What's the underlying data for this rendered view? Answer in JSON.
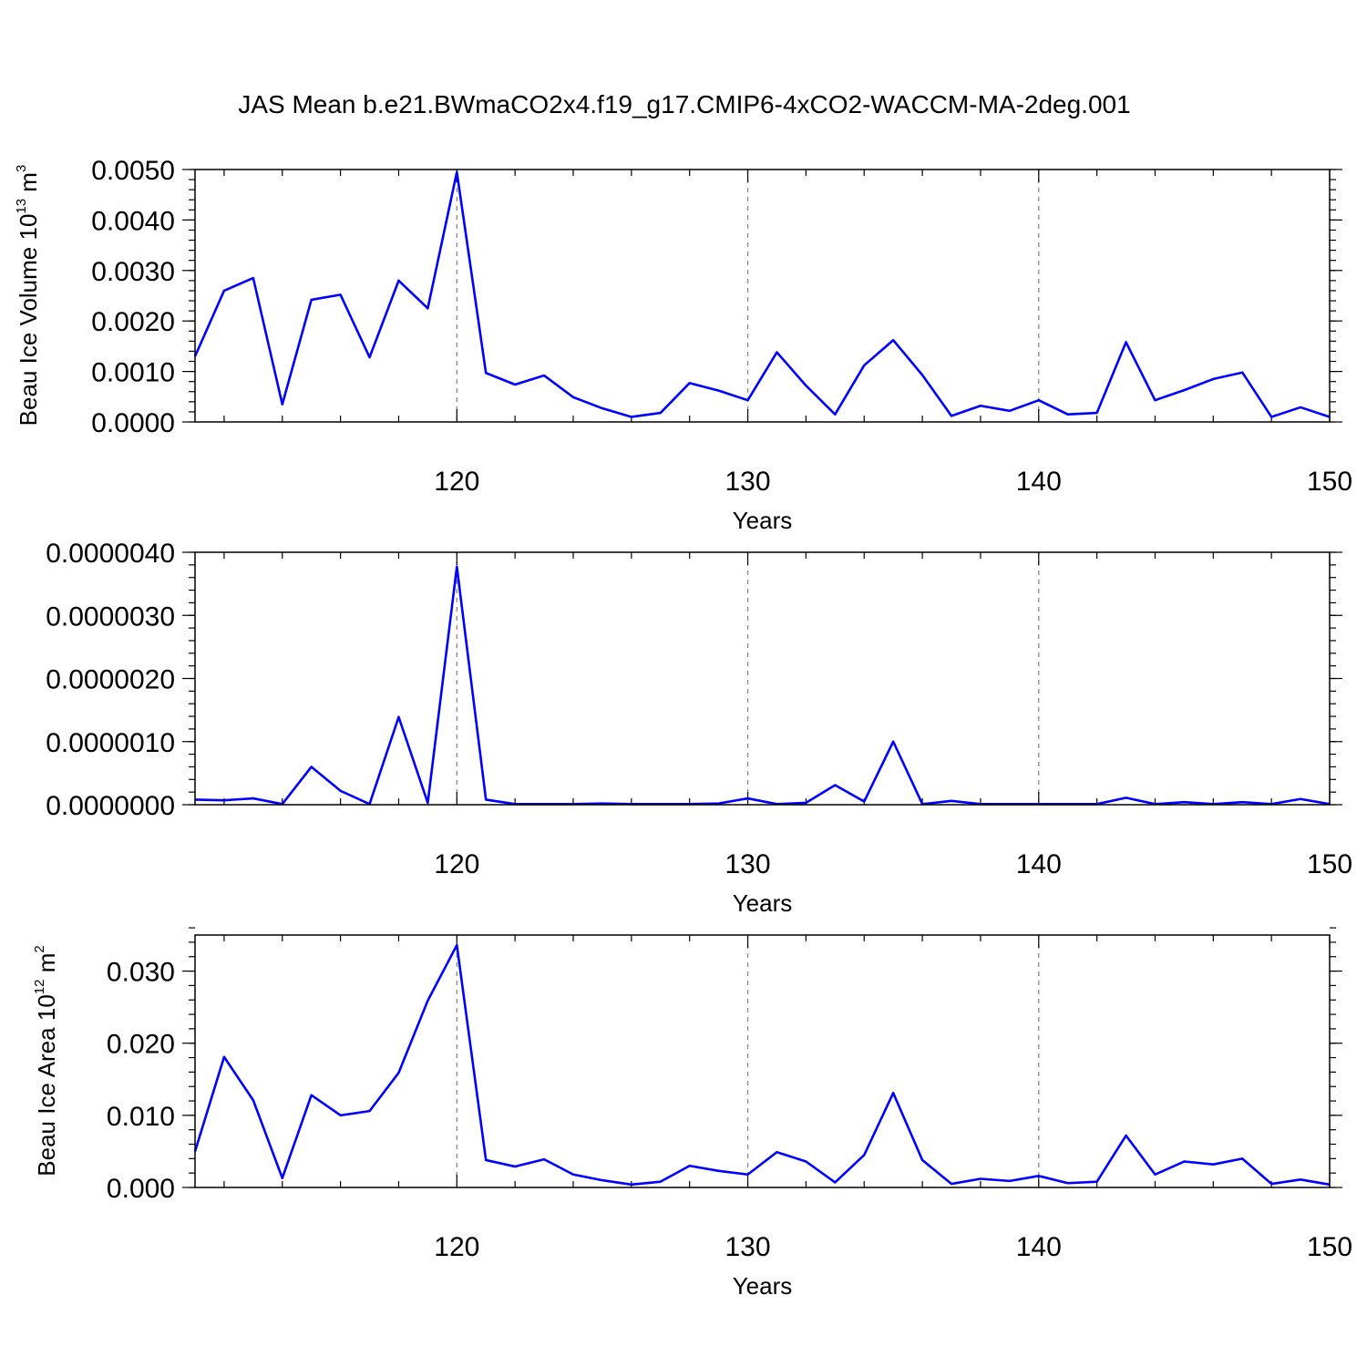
{
  "figure": {
    "title": "JAS Mean b.e21.BWmaCO2x4.f19_g17.CMIP6-4xCO2-WACCM-MA-2deg.001"
  },
  "chart_data": [
    {
      "type": "line",
      "title": "",
      "xlabel": "Years",
      "ylabel": {
        "main": "Beau Ice Volume 10",
        "sup1": "13",
        "unit": " m",
        "sup2": "3"
      },
      "xlim": [
        111,
        150
      ],
      "ylim": [
        0,
        0.005
      ],
      "xticks": [
        120,
        130,
        140,
        150
      ],
      "xtick_labels": [
        "120",
        "130",
        "140",
        "150"
      ],
      "yticks": [
        0,
        0.001,
        0.002,
        0.003,
        0.004,
        0.005
      ],
      "ytick_labels": [
        "0.0000",
        "0.0010",
        "0.0020",
        "0.0030",
        "0.0040",
        "0.0050"
      ],
      "grid_x": [
        120,
        130,
        140
      ],
      "color": "#0000ff",
      "series": [
        {
          "x": [
            111,
            112,
            113,
            114,
            115,
            116,
            117,
            118,
            119,
            120,
            121,
            122,
            123,
            124,
            125,
            126,
            127,
            128,
            129,
            130,
            131,
            132,
            133,
            134,
            135,
            136,
            137,
            138,
            139,
            140,
            141,
            142,
            143,
            144,
            145,
            146,
            147,
            148,
            149,
            150
          ],
          "values": [
            0.0013,
            0.0026,
            0.00285,
            0.00035,
            0.00242,
            0.00252,
            0.00128,
            0.0028,
            0.00225,
            0.00495,
            0.00097,
            0.00074,
            0.00092,
            0.00049,
            0.00027,
            0.0001,
            0.00018,
            0.00077,
            0.00062,
            0.00043,
            0.00138,
            0.00072,
            0.00015,
            0.00112,
            0.00162,
            0.00093,
            0.00012,
            0.00032,
            0.00022,
            0.00043,
            0.00015,
            0.00018,
            0.00158,
            0.00043,
            0.00063,
            0.00085,
            0.00098,
            0.0001,
            0.00029,
            0.0001
          ]
        }
      ]
    },
    {
      "type": "line",
      "title": "",
      "xlabel": "Years",
      "ylabel": "",
      "xlim": [
        111,
        150
      ],
      "ylim": [
        0,
        4e-06
      ],
      "xticks": [
        120,
        130,
        140,
        150
      ],
      "xtick_labels": [
        "120",
        "130",
        "140",
        "150"
      ],
      "yticks": [
        0,
        1e-06,
        2e-06,
        3e-06,
        4e-06
      ],
      "ytick_labels": [
        "0.0000000",
        "0.0000010",
        "0.0000020",
        "0.0000030",
        "0.0000040"
      ],
      "grid_x": [
        120,
        130,
        140
      ],
      "color": "#0000ff",
      "series": [
        {
          "x": [
            111,
            112,
            113,
            114,
            115,
            116,
            117,
            118,
            119,
            120,
            121,
            122,
            123,
            124,
            125,
            126,
            127,
            128,
            129,
            130,
            131,
            132,
            133,
            134,
            135,
            136,
            137,
            138,
            139,
            140,
            141,
            142,
            143,
            144,
            145,
            146,
            147,
            148,
            149,
            150
          ],
          "values": [
            8e-08,
            7e-08,
            1e-07,
            1e-08,
            6e-07,
            2.2e-07,
            1e-08,
            1.39e-06,
            3e-08,
            3.77e-06,
            8e-08,
            1e-08,
            1e-08,
            1e-08,
            2e-08,
            1e-08,
            1e-08,
            1e-08,
            2e-08,
            1e-07,
            1e-08,
            3e-08,
            3.1e-07,
            5e-08,
            1e-06,
            1e-08,
            6e-08,
            1e-08,
            1e-08,
            1e-08,
            1e-08,
            1e-08,
            1.1e-07,
            1e-08,
            4e-08,
            1e-08,
            4e-08,
            1e-08,
            9e-08,
            1e-08
          ]
        }
      ]
    },
    {
      "type": "line",
      "title": "",
      "xlabel": "Years",
      "ylabel": {
        "main": "Beau Ice Area 10",
        "sup1": "12",
        "unit": " m",
        "sup2": "2"
      },
      "xlim": [
        111,
        150
      ],
      "ylim": [
        0,
        0.035
      ],
      "xticks": [
        120,
        130,
        140,
        150
      ],
      "xtick_labels": [
        "120",
        "130",
        "140",
        "150"
      ],
      "yticks": [
        0,
        0.01,
        0.02,
        0.03
      ],
      "ytick_labels": [
        "0.000",
        "0.010",
        "0.020",
        "0.030"
      ],
      "grid_x": [
        120,
        130,
        140
      ],
      "color": "#0000ff",
      "series": [
        {
          "x": [
            111,
            112,
            113,
            114,
            115,
            116,
            117,
            118,
            119,
            120,
            121,
            122,
            123,
            124,
            125,
            126,
            127,
            128,
            129,
            130,
            131,
            132,
            133,
            134,
            135,
            136,
            137,
            138,
            139,
            140,
            141,
            142,
            143,
            144,
            145,
            146,
            147,
            148,
            149,
            150
          ],
          "values": [
            0.005,
            0.0181,
            0.0121,
            0.0013,
            0.0128,
            0.01,
            0.0106,
            0.0159,
            0.0259,
            0.0336,
            0.0038,
            0.0029,
            0.0039,
            0.0018,
            0.001,
            0.0004,
            0.0008,
            0.003,
            0.0023,
            0.0018,
            0.0049,
            0.0036,
            0.0007,
            0.0045,
            0.0131,
            0.0038,
            0.0005,
            0.0012,
            0.0009,
            0.0016,
            0.0006,
            0.0008,
            0.0072,
            0.0018,
            0.0036,
            0.0032,
            0.004,
            0.0005,
            0.0011,
            0.0004
          ]
        }
      ]
    }
  ]
}
